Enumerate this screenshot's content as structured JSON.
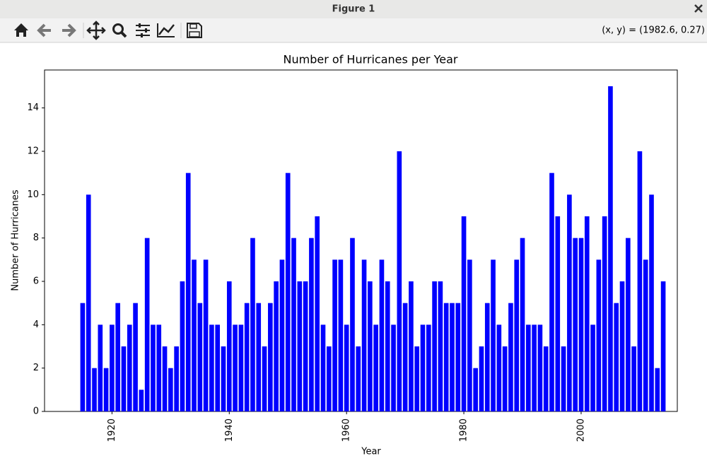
{
  "window": {
    "title": "Figure 1",
    "coords": "(x, y) = (1982.6, 0.27)"
  },
  "chart_data": {
    "type": "bar",
    "title": "Number of Hurricanes per Year",
    "x_label": "Year",
    "y_label": "Number of Hurricanes",
    "color": "#0000ff",
    "x": [
      1915,
      1916,
      1917,
      1918,
      1919,
      1920,
      1921,
      1922,
      1923,
      1924,
      1925,
      1926,
      1927,
      1928,
      1929,
      1930,
      1931,
      1932,
      1933,
      1934,
      1935,
      1936,
      1937,
      1938,
      1939,
      1940,
      1941,
      1942,
      1943,
      1944,
      1945,
      1946,
      1947,
      1948,
      1949,
      1950,
      1951,
      1952,
      1953,
      1954,
      1955,
      1956,
      1957,
      1958,
      1959,
      1960,
      1961,
      1962,
      1963,
      1964,
      1965,
      1966,
      1967,
      1968,
      1969,
      1970,
      1971,
      1972,
      1973,
      1974,
      1975,
      1976,
      1977,
      1978,
      1979,
      1980,
      1981,
      1982,
      1983,
      1984,
      1985,
      1986,
      1987,
      1988,
      1989,
      1990,
      1991,
      1992,
      1993,
      1994,
      1995,
      1996,
      1997,
      1998,
      1999,
      2000,
      2001,
      2002,
      2003,
      2004,
      2005,
      2006,
      2007,
      2008,
      2009,
      2010,
      2011,
      2012,
      2013,
      2014
    ],
    "values": [
      5,
      10,
      2,
      4,
      2,
      4,
      5,
      3,
      4,
      5,
      1,
      8,
      4,
      4,
      3,
      2,
      3,
      6,
      11,
      7,
      5,
      7,
      4,
      4,
      3,
      6,
      4,
      4,
      5,
      8,
      5,
      3,
      5,
      6,
      7,
      11,
      8,
      6,
      6,
      8,
      9,
      4,
      3,
      7,
      7,
      4,
      8,
      3,
      7,
      6,
      4,
      7,
      6,
      4,
      12,
      5,
      6,
      3,
      4,
      4,
      6,
      6,
      5,
      5,
      5,
      9,
      7,
      2,
      3,
      5,
      7,
      4,
      3,
      5,
      7,
      8,
      4,
      4,
      4,
      3,
      11,
      9,
      3,
      10,
      8,
      8,
      9,
      4,
      7,
      9,
      15,
      5,
      6,
      8,
      3,
      12,
      7,
      10,
      2,
      6
    ],
    "xlim": [
      1908.5,
      2016.4
    ],
    "xticks": [
      1920,
      1940,
      1960,
      1980,
      2000
    ],
    "ylim": [
      0,
      15.75
    ],
    "yticks": [
      0,
      2,
      4,
      6,
      8,
      10,
      12,
      14
    ]
  }
}
